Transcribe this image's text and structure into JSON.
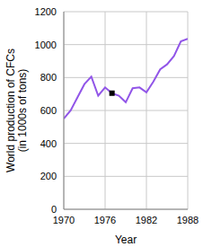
{
  "chart_data": {
    "type": "line",
    "xlabel": "Year",
    "ylabel": [
      "World production of CFCs",
      "(in 1000s of tons)"
    ],
    "x": [
      1970,
      1971,
      1972,
      1973,
      1974,
      1975,
      1976,
      1977,
      1978,
      1979,
      1980,
      1981,
      1982,
      1983,
      1984,
      1985,
      1986,
      1987,
      1988
    ],
    "values": [
      550,
      600,
      680,
      760,
      805,
      690,
      740,
      705,
      690,
      650,
      735,
      740,
      710,
      775,
      850,
      880,
      930,
      1020,
      1035
    ],
    "color": "#9155e8",
    "xlim": [
      1970,
      1988
    ],
    "xticks": [
      1970,
      1976,
      1982,
      1988
    ],
    "ylim": [
      0,
      1200
    ],
    "yticks": [
      0,
      200,
      400,
      600,
      800,
      1000,
      1200
    ],
    "grid": true,
    "marked_point": {
      "x": 1977,
      "y": 705
    }
  }
}
